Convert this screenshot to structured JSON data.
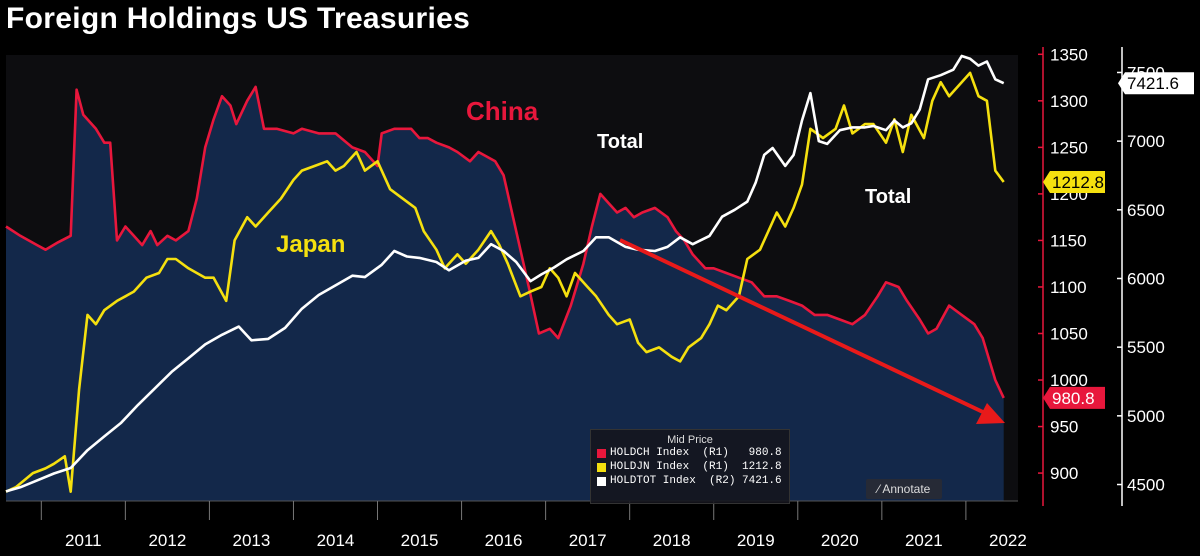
{
  "title": "Foreign Holdings US Treasuries",
  "colors": {
    "china": "#e8173c",
    "japan": "#f5e00f",
    "total": "#ffffff",
    "fill": "#13284a",
    "arrow": "#e81a1a"
  },
  "annotations": {
    "china": "China",
    "japan": "Japan",
    "total_1": "Total",
    "total_2": "Total"
  },
  "legend": {
    "header": "Mid Price",
    "rows": [
      {
        "text": "HOLDCH Index  (R1)   980.8",
        "color": "#e8173c"
      },
      {
        "text": "HOLDJN Index  (R1)  1212.8",
        "color": "#f5e00f"
      },
      {
        "text": "HOLDTOT Index  (R2) 7421.6",
        "color": "#ffffff"
      }
    ]
  },
  "annotate_label": "Annotate",
  "chart_data": {
    "type": "line",
    "title": "Foreign Holdings US Treasuries",
    "x_ticks": [
      "2011",
      "2012",
      "2013",
      "2014",
      "2015",
      "2016",
      "2017",
      "2018",
      "2019",
      "2020",
      "2021",
      "2022"
    ],
    "y_left": {
      "ticks": [
        900,
        950,
        1000,
        1050,
        1100,
        1150,
        1200,
        1250,
        1300,
        1350
      ],
      "range": [
        870,
        1360
      ]
    },
    "y_right": {
      "ticks": [
        4500,
        5000,
        5500,
        6000,
        6500,
        7000,
        7500
      ],
      "range": [
        4380,
        7700
      ]
    },
    "last_values": {
      "china": "980.8",
      "japan": "1212.8",
      "total": "7421.6"
    },
    "series": [
      {
        "name": "HOLDCH Index",
        "axis": "R1",
        "values": [
          [
            2010.58,
            1165
          ],
          [
            2010.75,
            1155
          ],
          [
            2010.95,
            1145
          ],
          [
            2011.05,
            1140
          ],
          [
            2011.2,
            1148
          ],
          [
            2011.35,
            1155
          ],
          [
            2011.42,
            1312
          ],
          [
            2011.5,
            1285
          ],
          [
            2011.65,
            1270
          ],
          [
            2011.75,
            1255
          ],
          [
            2011.82,
            1255
          ],
          [
            2011.9,
            1150
          ],
          [
            2012.0,
            1165
          ],
          [
            2012.1,
            1155
          ],
          [
            2012.2,
            1145
          ],
          [
            2012.3,
            1160
          ],
          [
            2012.38,
            1145
          ],
          [
            2012.5,
            1155
          ],
          [
            2012.6,
            1150
          ],
          [
            2012.75,
            1160
          ],
          [
            2012.85,
            1195
          ],
          [
            2012.95,
            1250
          ],
          [
            2013.05,
            1280
          ],
          [
            2013.15,
            1305
          ],
          [
            2013.25,
            1295
          ],
          [
            2013.32,
            1275
          ],
          [
            2013.45,
            1300
          ],
          [
            2013.55,
            1315
          ],
          [
            2013.65,
            1270
          ],
          [
            2013.8,
            1270
          ],
          [
            2014.0,
            1265
          ],
          [
            2014.1,
            1270
          ],
          [
            2014.3,
            1265
          ],
          [
            2014.5,
            1265
          ],
          [
            2014.7,
            1250
          ],
          [
            2014.85,
            1245
          ],
          [
            2015.0,
            1230
          ],
          [
            2015.05,
            1265
          ],
          [
            2015.2,
            1270
          ],
          [
            2015.4,
            1270
          ],
          [
            2015.5,
            1260
          ],
          [
            2015.6,
            1260
          ],
          [
            2015.7,
            1255
          ],
          [
            2015.85,
            1250
          ],
          [
            2015.95,
            1245
          ],
          [
            2016.1,
            1235
          ],
          [
            2016.2,
            1245
          ],
          [
            2016.4,
            1235
          ],
          [
            2016.5,
            1220
          ],
          [
            2016.65,
            1160
          ],
          [
            2016.8,
            1100
          ],
          [
            2016.92,
            1050
          ],
          [
            2017.05,
            1055
          ],
          [
            2017.15,
            1045
          ],
          [
            2017.3,
            1080
          ],
          [
            2017.45,
            1125
          ],
          [
            2017.55,
            1165
          ],
          [
            2017.65,
            1200
          ],
          [
            2017.75,
            1190
          ],
          [
            2017.85,
            1180
          ],
          [
            2017.95,
            1185
          ],
          [
            2018.05,
            1175
          ],
          [
            2018.15,
            1180
          ],
          [
            2018.3,
            1185
          ],
          [
            2018.45,
            1175
          ],
          [
            2018.55,
            1160
          ],
          [
            2018.65,
            1150
          ],
          [
            2018.75,
            1135
          ],
          [
            2018.9,
            1120
          ],
          [
            2019.0,
            1120
          ],
          [
            2019.15,
            1115
          ],
          [
            2019.3,
            1110
          ],
          [
            2019.45,
            1105
          ],
          [
            2019.6,
            1090
          ],
          [
            2019.75,
            1090
          ],
          [
            2019.9,
            1085
          ],
          [
            2020.05,
            1080
          ],
          [
            2020.2,
            1070
          ],
          [
            2020.35,
            1070
          ],
          [
            2020.5,
            1065
          ],
          [
            2020.65,
            1060
          ],
          [
            2020.8,
            1070
          ],
          [
            2020.95,
            1090
          ],
          [
            2021.05,
            1105
          ],
          [
            2021.2,
            1100
          ],
          [
            2021.3,
            1085
          ],
          [
            2021.45,
            1065
          ],
          [
            2021.55,
            1050
          ],
          [
            2021.65,
            1055
          ],
          [
            2021.8,
            1080
          ],
          [
            2021.95,
            1070
          ],
          [
            2022.1,
            1060
          ],
          [
            2022.2,
            1045
          ],
          [
            2022.35,
            1000
          ],
          [
            2022.45,
            980.8
          ]
        ]
      },
      {
        "name": "HOLDJN Index",
        "axis": "R1",
        "values": [
          [
            2010.58,
            880
          ],
          [
            2010.7,
            885
          ],
          [
            2010.9,
            900
          ],
          [
            2011.05,
            905
          ],
          [
            2011.15,
            910
          ],
          [
            2011.28,
            918
          ],
          [
            2011.35,
            880
          ],
          [
            2011.45,
            990
          ],
          [
            2011.55,
            1070
          ],
          [
            2011.65,
            1060
          ],
          [
            2011.75,
            1075
          ],
          [
            2011.9,
            1085
          ],
          [
            2012.0,
            1090
          ],
          [
            2012.1,
            1095
          ],
          [
            2012.25,
            1110
          ],
          [
            2012.4,
            1115
          ],
          [
            2012.5,
            1130
          ],
          [
            2012.6,
            1130
          ],
          [
            2012.75,
            1120
          ],
          [
            2012.85,
            1115
          ],
          [
            2012.95,
            1110
          ],
          [
            2013.05,
            1110
          ],
          [
            2013.2,
            1085
          ],
          [
            2013.3,
            1150
          ],
          [
            2013.45,
            1175
          ],
          [
            2013.55,
            1165
          ],
          [
            2013.7,
            1180
          ],
          [
            2013.85,
            1195
          ],
          [
            2014.0,
            1215
          ],
          [
            2014.1,
            1225
          ],
          [
            2014.25,
            1230
          ],
          [
            2014.4,
            1235
          ],
          [
            2014.5,
            1225
          ],
          [
            2014.6,
            1230
          ],
          [
            2014.75,
            1245
          ],
          [
            2014.85,
            1225
          ],
          [
            2015.0,
            1235
          ],
          [
            2015.15,
            1205
          ],
          [
            2015.3,
            1195
          ],
          [
            2015.45,
            1185
          ],
          [
            2015.55,
            1160
          ],
          [
            2015.7,
            1140
          ],
          [
            2015.8,
            1120
          ],
          [
            2015.95,
            1135
          ],
          [
            2016.05,
            1125
          ],
          [
            2016.2,
            1140
          ],
          [
            2016.35,
            1160
          ],
          [
            2016.45,
            1145
          ],
          [
            2016.55,
            1125
          ],
          [
            2016.7,
            1090
          ],
          [
            2016.82,
            1095
          ],
          [
            2016.95,
            1100
          ],
          [
            2017.05,
            1120
          ],
          [
            2017.15,
            1110
          ],
          [
            2017.25,
            1090
          ],
          [
            2017.35,
            1115
          ],
          [
            2017.5,
            1100
          ],
          [
            2017.6,
            1090
          ],
          [
            2017.75,
            1070
          ],
          [
            2017.85,
            1060
          ],
          [
            2018.0,
            1065
          ],
          [
            2018.1,
            1040
          ],
          [
            2018.2,
            1030
          ],
          [
            2018.35,
            1035
          ],
          [
            2018.5,
            1025
          ],
          [
            2018.6,
            1020
          ],
          [
            2018.7,
            1035
          ],
          [
            2018.85,
            1045
          ],
          [
            2018.95,
            1060
          ],
          [
            2019.05,
            1080
          ],
          [
            2019.15,
            1075
          ],
          [
            2019.3,
            1090
          ],
          [
            2019.4,
            1130
          ],
          [
            2019.55,
            1140
          ],
          [
            2019.65,
            1160
          ],
          [
            2019.75,
            1180
          ],
          [
            2019.85,
            1165
          ],
          [
            2019.95,
            1185
          ],
          [
            2020.05,
            1210
          ],
          [
            2020.15,
            1270
          ],
          [
            2020.3,
            1260
          ],
          [
            2020.45,
            1270
          ],
          [
            2020.55,
            1295
          ],
          [
            2020.65,
            1265
          ],
          [
            2020.8,
            1275
          ],
          [
            2020.9,
            1275
          ],
          [
            2021.05,
            1255
          ],
          [
            2021.15,
            1280
          ],
          [
            2021.25,
            1245
          ],
          [
            2021.35,
            1285
          ],
          [
            2021.5,
            1260
          ],
          [
            2021.6,
            1300
          ],
          [
            2021.7,
            1320
          ],
          [
            2021.8,
            1305
          ],
          [
            2021.95,
            1320
          ],
          [
            2022.05,
            1330
          ],
          [
            2022.15,
            1305
          ],
          [
            2022.25,
            1300
          ],
          [
            2022.35,
            1225
          ],
          [
            2022.45,
            1212.8
          ]
        ]
      },
      {
        "name": "HOLDTOT Index",
        "axis": "R2",
        "values": [
          [
            2010.58,
            4450
          ],
          [
            2010.75,
            4480
          ],
          [
            2010.95,
            4530
          ],
          [
            2011.15,
            4580
          ],
          [
            2011.35,
            4620
          ],
          [
            2011.55,
            4750
          ],
          [
            2011.75,
            4850
          ],
          [
            2011.95,
            4950
          ],
          [
            2012.15,
            5080
          ],
          [
            2012.35,
            5200
          ],
          [
            2012.55,
            5320
          ],
          [
            2012.75,
            5420
          ],
          [
            2012.95,
            5520
          ],
          [
            2013.15,
            5590
          ],
          [
            2013.35,
            5650
          ],
          [
            2013.5,
            5550
          ],
          [
            2013.7,
            5560
          ],
          [
            2013.9,
            5640
          ],
          [
            2014.1,
            5780
          ],
          [
            2014.3,
            5880
          ],
          [
            2014.5,
            5950
          ],
          [
            2014.7,
            6020
          ],
          [
            2014.85,
            6010
          ],
          [
            2015.05,
            6100
          ],
          [
            2015.2,
            6200
          ],
          [
            2015.35,
            6160
          ],
          [
            2015.5,
            6150
          ],
          [
            2015.7,
            6120
          ],
          [
            2015.85,
            6060
          ],
          [
            2016.05,
            6130
          ],
          [
            2016.2,
            6150
          ],
          [
            2016.35,
            6250
          ],
          [
            2016.5,
            6200
          ],
          [
            2016.65,
            6120
          ],
          [
            2016.82,
            5980
          ],
          [
            2016.95,
            6030
          ],
          [
            2017.1,
            6080
          ],
          [
            2017.25,
            6140
          ],
          [
            2017.45,
            6200
          ],
          [
            2017.6,
            6300
          ],
          [
            2017.75,
            6300
          ],
          [
            2017.95,
            6230
          ],
          [
            2018.1,
            6210
          ],
          [
            2018.3,
            6200
          ],
          [
            2018.45,
            6230
          ],
          [
            2018.6,
            6300
          ],
          [
            2018.75,
            6250
          ],
          [
            2018.95,
            6310
          ],
          [
            2019.1,
            6450
          ],
          [
            2019.25,
            6500
          ],
          [
            2019.4,
            6560
          ],
          [
            2019.5,
            6700
          ],
          [
            2019.6,
            6900
          ],
          [
            2019.7,
            6950
          ],
          [
            2019.85,
            6820
          ],
          [
            2019.95,
            6900
          ],
          [
            2020.05,
            7150
          ],
          [
            2020.15,
            7350
          ],
          [
            2020.25,
            7000
          ],
          [
            2020.35,
            6980
          ],
          [
            2020.5,
            7080
          ],
          [
            2020.65,
            7100
          ],
          [
            2020.8,
            7100
          ],
          [
            2020.9,
            7110
          ],
          [
            2021.05,
            7080
          ],
          [
            2021.15,
            7150
          ],
          [
            2021.25,
            7100
          ],
          [
            2021.35,
            7130
          ],
          [
            2021.45,
            7230
          ],
          [
            2021.55,
            7450
          ],
          [
            2021.7,
            7480
          ],
          [
            2021.85,
            7520
          ],
          [
            2021.95,
            7620
          ],
          [
            2022.05,
            7600
          ],
          [
            2022.15,
            7550
          ],
          [
            2022.25,
            7580
          ],
          [
            2022.35,
            7450
          ],
          [
            2022.45,
            7421.6
          ]
        ]
      }
    ]
  }
}
